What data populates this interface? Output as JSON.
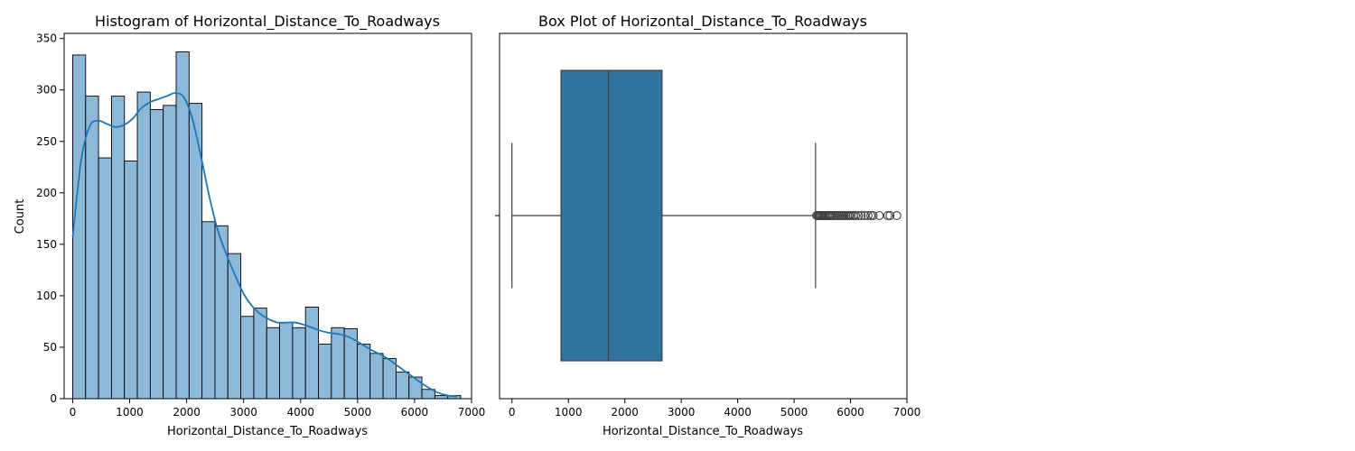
{
  "chart_data": [
    {
      "type": "bar",
      "subtype": "histogram",
      "title": "Histogram of Horizontal_Distance_To_Roadways",
      "xlabel": "Horizontal_Distance_To_Roadways",
      "ylabel": "Count",
      "xlim": [
        -150,
        7000
      ],
      "ylim": [
        0,
        355
      ],
      "x_ticks": [
        0,
        1000,
        2000,
        3000,
        4000,
        5000,
        6000,
        7000
      ],
      "y_ticks": [
        0,
        50,
        100,
        150,
        200,
        250,
        300,
        350
      ],
      "bin_start": 0,
      "bin_width": 227,
      "counts": [
        334,
        294,
        234,
        294,
        231,
        298,
        281,
        285,
        337,
        287,
        172,
        168,
        141,
        80,
        88,
        69,
        74,
        69,
        89,
        53,
        69,
        68,
        53,
        44,
        39,
        26,
        21,
        9,
        3,
        3
      ],
      "kde": {
        "x": [
          0,
          150,
          300,
          450,
          600,
          750,
          900,
          1050,
          1200,
          1350,
          1500,
          1650,
          1800,
          1950,
          2100,
          2250,
          2400,
          2550,
          2700,
          2850,
          3000,
          3150,
          3300,
          3450,
          3600,
          3750,
          3900,
          4050,
          4200,
          4350,
          4500,
          4650,
          4800,
          4950,
          5100,
          5250,
          5400,
          5550,
          5700,
          5850,
          6000,
          6150,
          6300,
          6450,
          6600,
          6750
        ],
        "y": [
          157,
          232,
          265,
          270,
          267,
          264,
          266,
          272,
          282,
          288,
          291,
          294,
          297,
          293,
          272,
          236,
          196,
          163,
          140,
          120,
          102,
          90,
          82,
          77,
          74,
          74,
          74,
          72,
          69,
          66,
          64,
          63,
          61,
          57,
          52,
          47,
          43,
          38,
          32,
          26,
          20,
          14,
          9,
          5,
          3,
          2
        ]
      },
      "colors": {
        "bar": "#8db9d9",
        "kde": "#1f77b4"
      },
      "grid": false
    },
    {
      "type": "box",
      "title": "Box Plot of Horizontal_Distance_To_Roadways",
      "xlabel": "Horizontal_Distance_To_Roadways",
      "xlim": [
        -220,
        7000
      ],
      "x_ticks": [
        0,
        1000,
        2000,
        3000,
        4000,
        5000,
        6000,
        7000
      ],
      "whisker_low": 0,
      "q1": 870,
      "median": 1710,
      "q3": 2660,
      "whisker_high": 5380,
      "outliers": [
        5400,
        5420,
        5440,
        5460,
        5480,
        5500,
        5520,
        5545,
        5570,
        5600,
        5625,
        5650,
        5680,
        5710,
        5740,
        5770,
        5800,
        5830,
        5860,
        5890,
        5920,
        5950,
        5980,
        6010,
        6050,
        6090,
        6140,
        6190,
        6250,
        6310,
        6360,
        6400,
        6510,
        6660,
        6700,
        6820
      ],
      "colors": {
        "box": "#3274a1",
        "line": "#3f3f3f"
      },
      "grid": false
    }
  ]
}
